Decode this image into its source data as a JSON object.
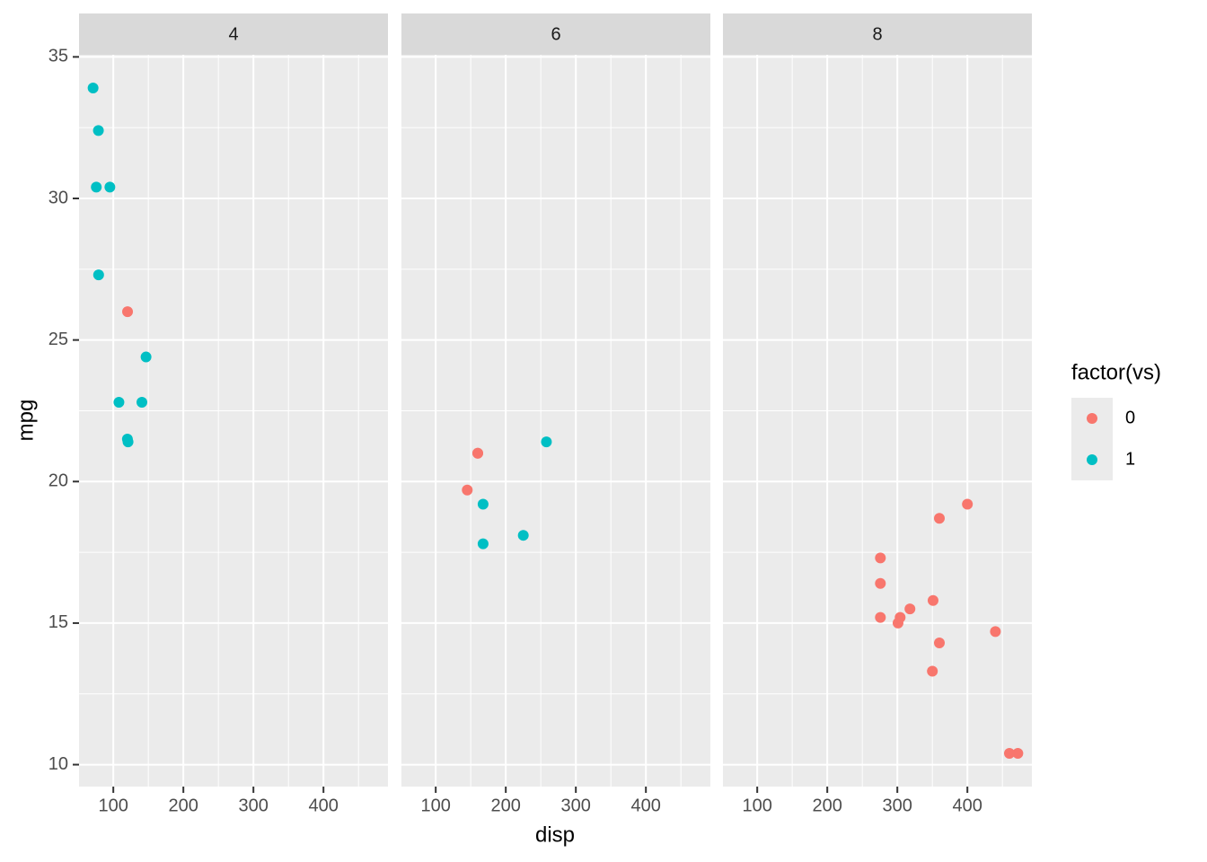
{
  "chart_data": {
    "type": "scatter",
    "x_label": "disp",
    "y_label": "mpg",
    "legend_title": "factor(vs)",
    "legend": "right",
    "grid": true,
    "xlim": [
      51.05,
      492.05
    ],
    "ylim": [
      9.225,
      35.075
    ],
    "xticks": [
      100,
      200,
      300,
      400
    ],
    "yticks": [
      10,
      15,
      20,
      25,
      30,
      35
    ],
    "xminor": [
      150,
      250,
      350,
      450
    ],
    "yminor": [
      12.5,
      17.5,
      22.5,
      27.5,
      32.5
    ],
    "facets": [
      {
        "title": "4",
        "series": [
          {
            "name": "0",
            "color": "#F8766D",
            "x": [
              120.3
            ],
            "values": [
              26
            ]
          },
          {
            "name": "1",
            "color": "#00BFC4",
            "x": [
              108,
              146.7,
              140.8,
              78.7,
              75.7,
              71.1,
              120.1,
              79,
              95.1,
              121
            ],
            "values": [
              22.8,
              24.4,
              22.8,
              32.4,
              30.4,
              33.9,
              21.5,
              27.3,
              30.4,
              21.4
            ]
          }
        ]
      },
      {
        "title": "6",
        "series": [
          {
            "name": "0",
            "color": "#F8766D",
            "x": [
              160,
              160,
              145
            ],
            "values": [
              21,
              21,
              19.7
            ]
          },
          {
            "name": "1",
            "color": "#00BFC4",
            "x": [
              258,
              225,
              167.6,
              167.6
            ],
            "values": [
              21.4,
              18.1,
              19.2,
              17.8
            ]
          }
        ]
      },
      {
        "title": "8",
        "series": [
          {
            "name": "0",
            "color": "#F8766D",
            "x": [
              360,
              360,
              275.8,
              275.8,
              275.8,
              472,
              460,
              440,
              318,
              304,
              350,
              400,
              351,
              301
            ],
            "values": [
              18.7,
              14.3,
              16.4,
              17.3,
              15.2,
              10.4,
              10.4,
              14.7,
              15.5,
              15.2,
              13.3,
              19.2,
              15.8,
              15
            ]
          }
        ]
      }
    ]
  }
}
